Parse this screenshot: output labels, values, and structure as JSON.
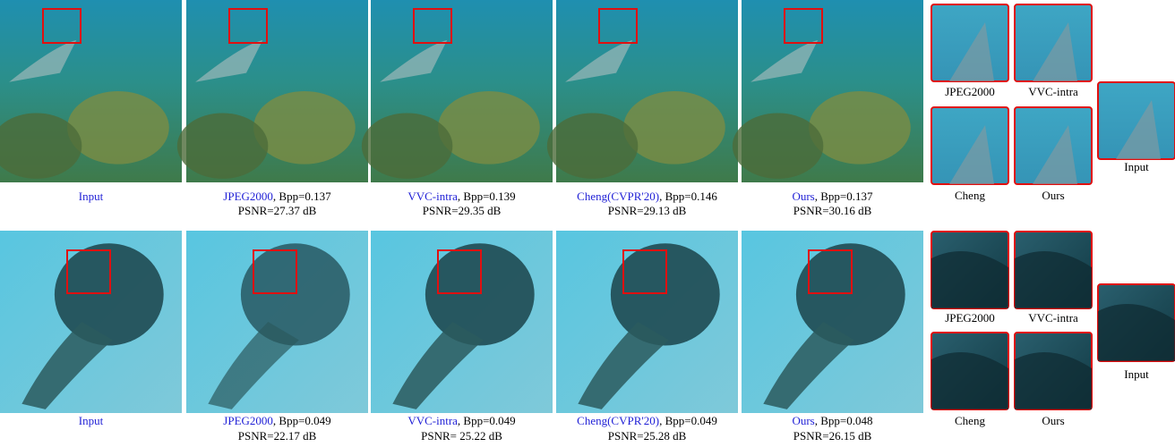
{
  "rows": [
    {
      "panels": [
        {
          "method": "Input"
        },
        {
          "method": "JPEG2000",
          "detail": ", Bpp=0.137",
          "psnr": "PSNR=27.37 dB"
        },
        {
          "method": "VVC-intra",
          "detail": ", Bpp=0.139",
          "psnr": "PSNR=29.35 dB"
        },
        {
          "method": "Cheng(CVPR'20)",
          "detail": ", Bpp=0.146",
          "psnr": "PSNR=29.13 dB"
        },
        {
          "method": "Ours",
          "detail": ", Bpp=0.137",
          "psnr": "PSNR=30.16 dB"
        }
      ],
      "crops": [
        "JPEG2000",
        "VVC-intra",
        "Cheng",
        "Ours"
      ],
      "input_crop": "Input"
    },
    {
      "panels": [
        {
          "method": "Input"
        },
        {
          "method": "JPEG2000",
          "detail": ", Bpp=0.049",
          "psnr": "PSNR=22.17 dB"
        },
        {
          "method": "VVC-intra",
          "detail": ", Bpp=0.049",
          "psnr": "PSNR= 25.22 dB"
        },
        {
          "method": "Cheng(CVPR'20)",
          "detail": ", Bpp=0.049",
          "psnr": "PSNR=25.28 dB"
        },
        {
          "method": "Ours",
          "detail": ", Bpp=0.048",
          "psnr": "PSNR=26.15 dB"
        }
      ],
      "crops": [
        "JPEG2000",
        "VVC-intra",
        "Cheng",
        "Ours"
      ],
      "input_crop": "Input"
    }
  ]
}
